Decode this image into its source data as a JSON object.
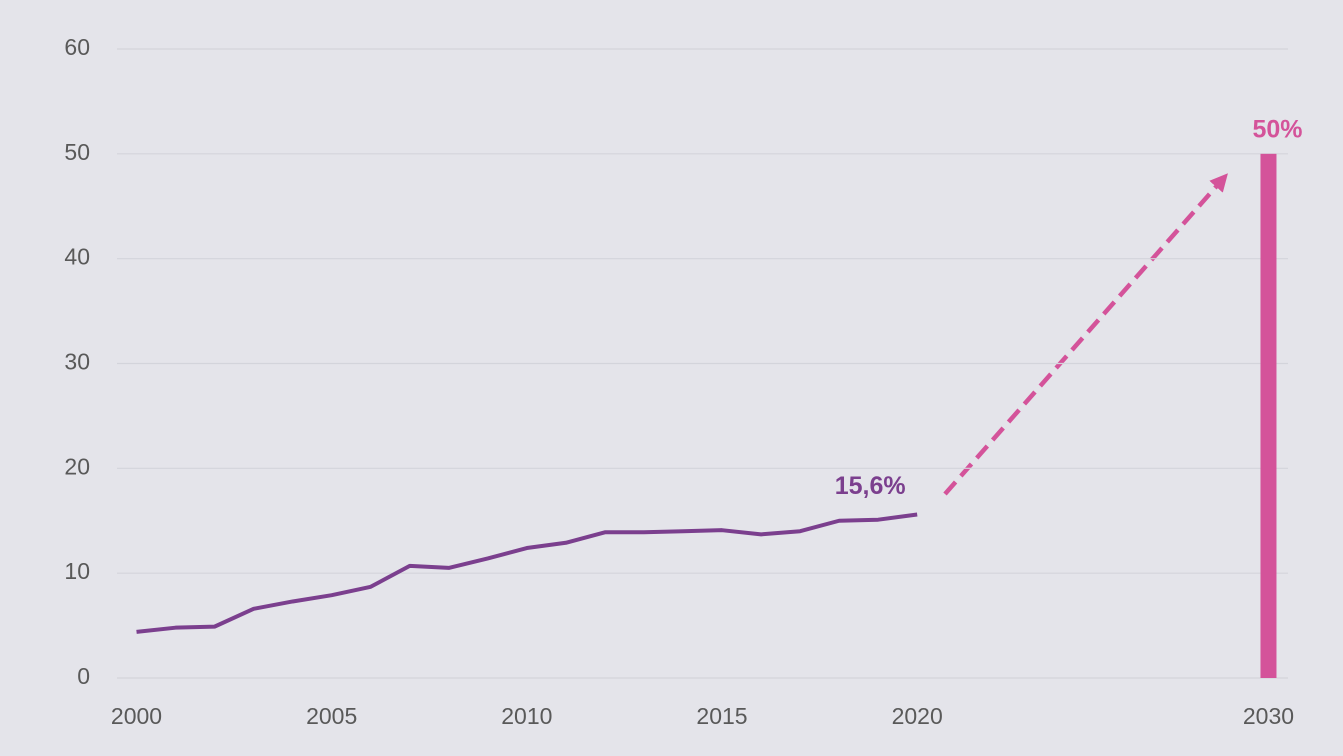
{
  "chart_data": {
    "type": "line",
    "categories": [
      "2000",
      null,
      null,
      null,
      null,
      "2005",
      null,
      null,
      null,
      null,
      "2010",
      null,
      null,
      null,
      null,
      "2015",
      null,
      null,
      null,
      null,
      "2020",
      null,
      null,
      null,
      null,
      null,
      null,
      null,
      null,
      "2030"
    ],
    "series": [
      {
        "type": "line",
        "color": "#7b3f8e",
        "values": [
          4.4,
          4.8,
          4.9,
          6.6,
          7.3,
          7.9,
          8.7,
          10.7,
          10.5,
          11.4,
          12.4,
          12.9,
          13.9,
          13.9,
          14.0,
          14.1,
          13.7,
          14.0,
          15.0,
          15.1,
          15.6,
          null,
          null,
          null,
          null,
          null,
          null,
          null,
          null,
          null
        ],
        "value_labels": [
          null,
          null,
          null,
          null,
          null,
          null,
          null,
          null,
          null,
          null,
          null,
          null,
          null,
          null,
          null,
          null,
          null,
          null,
          null,
          null,
          "15,6%",
          null,
          null,
          null,
          null,
          null,
          null,
          null,
          null,
          null
        ]
      },
      {
        "type": "bar",
        "color": "#d4539a",
        "values": [
          null,
          null,
          null,
          null,
          null,
          null,
          null,
          null,
          null,
          null,
          null,
          null,
          null,
          null,
          null,
          null,
          null,
          null,
          null,
          null,
          null,
          null,
          null,
          null,
          null,
          null,
          null,
          null,
          null,
          50
        ],
        "value_labels": [
          null,
          null,
          null,
          null,
          null,
          null,
          null,
          null,
          null,
          null,
          null,
          null,
          null,
          null,
          null,
          null,
          null,
          null,
          null,
          null,
          null,
          null,
          null,
          null,
          null,
          null,
          null,
          null,
          null,
          "50%"
        ]
      }
    ],
    "ylim": [
      0,
      60
    ],
    "yticks": [
      0,
      10,
      20,
      30,
      40,
      50,
      60
    ],
    "grid": true
  }
}
